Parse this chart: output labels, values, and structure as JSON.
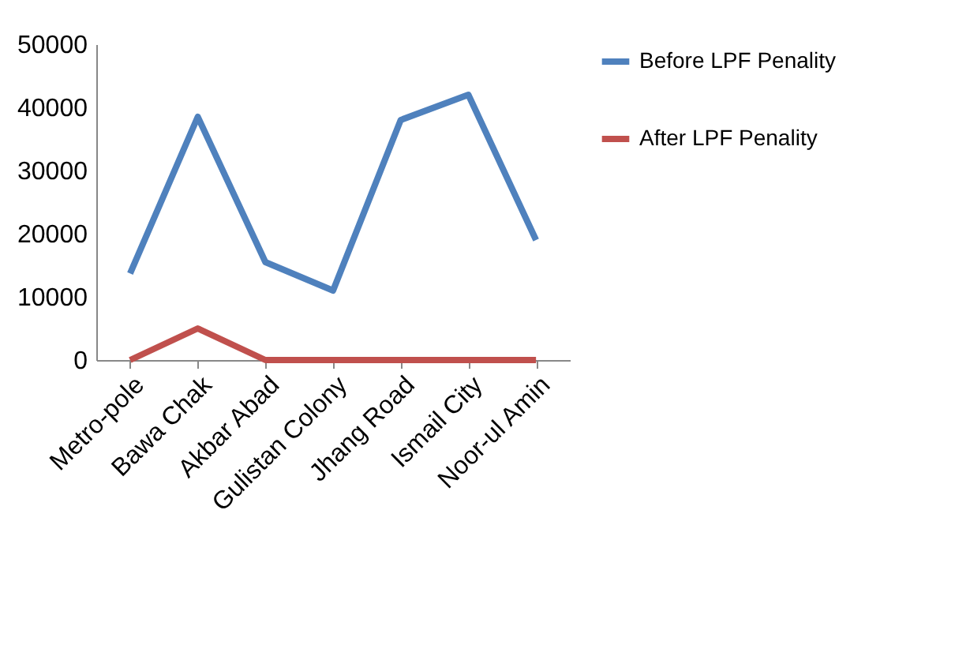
{
  "chart_data": {
    "type": "line",
    "categories": [
      "Metro-pole",
      "Bawa Chak",
      "Akbar Abad",
      "Gulistan Colony",
      "Jhang Road",
      "Ismail City",
      "Noor-ul Amin"
    ],
    "series": [
      {
        "name": "Before LPF Penality",
        "color": "#4f81bd",
        "values": [
          13700,
          38500,
          15500,
          11000,
          38000,
          42000,
          19000
        ]
      },
      {
        "name": "After LPF Penality",
        "color": "#c0504d",
        "values": [
          0,
          5000,
          0,
          0,
          0,
          0,
          0
        ]
      }
    ],
    "ylim": [
      0,
      50000
    ],
    "yticks": [
      0,
      10000,
      20000,
      30000,
      40000,
      50000
    ],
    "grid": false,
    "legend": "right",
    "marker": "none",
    "line_style": "solid"
  }
}
